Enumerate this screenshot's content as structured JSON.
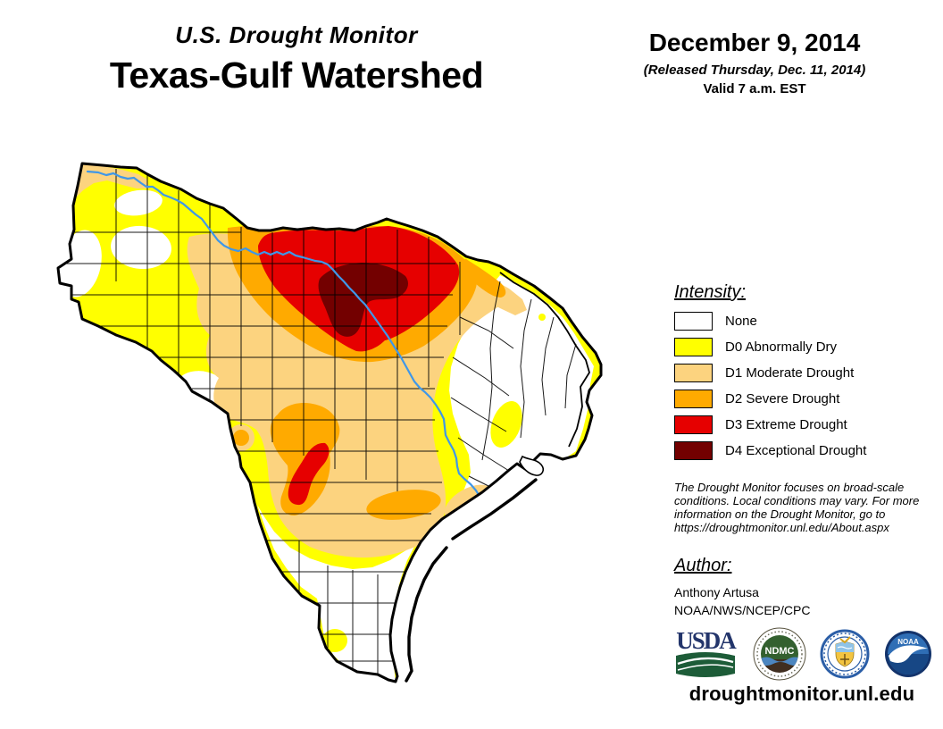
{
  "header": {
    "title_small": "U.S. Drought Monitor",
    "title_main": "Texas-Gulf Watershed"
  },
  "date_block": {
    "date": "December 9, 2014",
    "released": "(Released Thursday, Dec. 11, 2014)",
    "valid": "Valid 7 a.m. EST"
  },
  "legend": {
    "heading": "Intensity:",
    "items": [
      {
        "code": "none",
        "label": "None",
        "color": "#FFFFFF"
      },
      {
        "code": "D0",
        "label": "D0 Abnormally Dry",
        "color": "#FFFF00"
      },
      {
        "code": "D1",
        "label": "D1 Moderate Drought",
        "color": "#FCD37F"
      },
      {
        "code": "D2",
        "label": "D2 Severe Drought",
        "color": "#FFAA00"
      },
      {
        "code": "D3",
        "label": "D3 Extreme Drought",
        "color": "#E60000"
      },
      {
        "code": "D4",
        "label": "D4 Exceptional Drought",
        "color": "#730000"
      }
    ]
  },
  "disclaimer": "The Drought Monitor focuses on broad-scale conditions. Local conditions may vary. For more information on the Drought Monitor, go to https://droughtmonitor.unl.edu/About.aspx",
  "author": {
    "heading": "Author:",
    "name": "Anthony Artusa",
    "org": "NOAA/NWS/NCEP/CPC"
  },
  "logos": [
    {
      "name": "usda-logo",
      "label": "USDA"
    },
    {
      "name": "ndmc-logo",
      "label": "NDMC"
    },
    {
      "name": "doc-logo",
      "label": ""
    },
    {
      "name": "noaa-logo",
      "label": "NOAA"
    }
  ],
  "footer": {
    "url": "droughtmonitor.unl.edu"
  },
  "map": {
    "region": "Texas-Gulf Watershed",
    "river_color": "#3F97E8",
    "boundary_color": "#000000",
    "ocean_color": "#FFFFFF"
  }
}
